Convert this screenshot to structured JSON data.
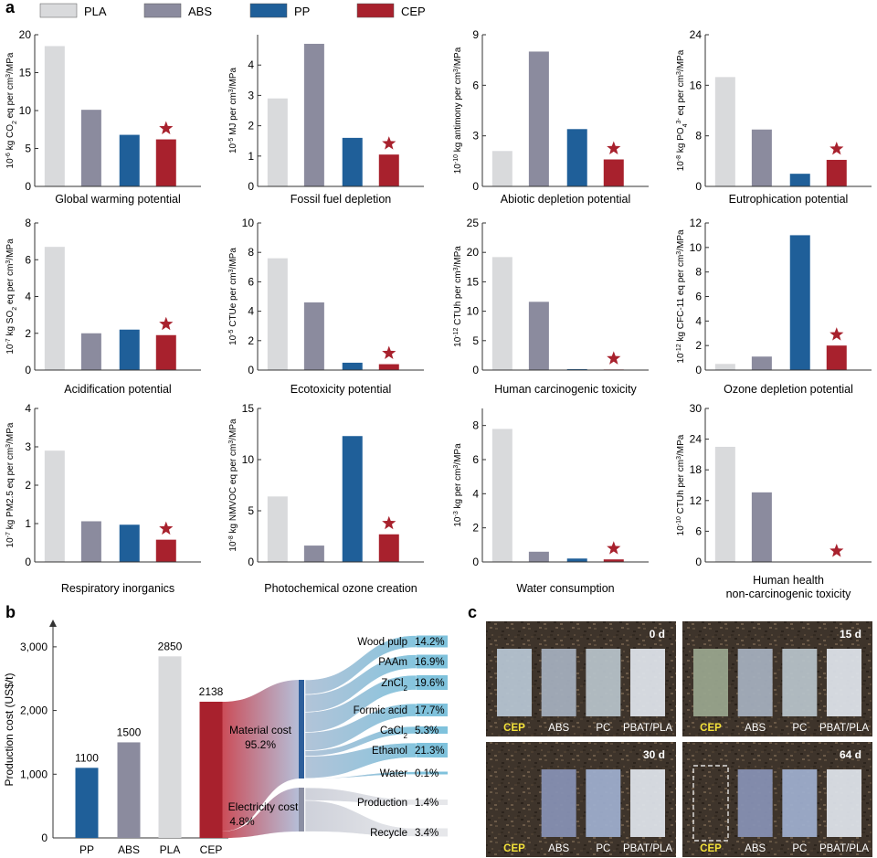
{
  "panel_labels": {
    "a": "a",
    "b": "b",
    "c": "c"
  },
  "legend": {
    "items": [
      {
        "label": "PLA",
        "color": "#d9dadc"
      },
      {
        "label": "ABS",
        "color": "#8b8b9e"
      },
      {
        "label": "PP",
        "color": "#1f5f99"
      },
      {
        "label": "CEP",
        "color": "#a8212d"
      }
    ]
  },
  "colors": {
    "PLA": "#d9dadc",
    "ABS": "#8b8b9e",
    "PP": "#1f5f99",
    "CEP": "#a8212d",
    "star": "#a8212d"
  },
  "chart_data": [
    {
      "type": "bar",
      "title": "",
      "xlabel": "Global warming potential",
      "ylabel_parts": [
        "10",
        "-6",
        " kg CO",
        "2",
        " eq per cm",
        "3",
        "/MPa"
      ],
      "ylim": [
        0,
        20
      ],
      "yticks": [
        0,
        5,
        10,
        15,
        20
      ],
      "categories": [
        "PLA",
        "ABS",
        "PP",
        "CEP"
      ],
      "values": [
        18.5,
        10.1,
        6.8,
        6.2
      ],
      "star_on": "CEP"
    },
    {
      "type": "bar",
      "title": "",
      "xlabel": "Fossil fuel depletion",
      "ylabel_parts": [
        "10",
        "-5",
        " MJ per cm",
        "3",
        "/MPa"
      ],
      "ylim": [
        0,
        5
      ],
      "yticks": [
        0,
        1,
        2,
        3,
        4
      ],
      "categories": [
        "PLA",
        "ABS",
        "PP",
        "CEP"
      ],
      "values": [
        2.9,
        4.7,
        1.6,
        1.05
      ],
      "star_on": "CEP"
    },
    {
      "type": "bar",
      "title": "",
      "xlabel": "Abiotic depletion potential",
      "ylabel_parts": [
        "10",
        "-10",
        " kg antimony per cm",
        "3",
        "/MPa"
      ],
      "ylim": [
        0,
        9
      ],
      "yticks": [
        0,
        3,
        6,
        9
      ],
      "categories": [
        "PLA",
        "ABS",
        "PP",
        "CEP"
      ],
      "values": [
        2.1,
        8.0,
        3.4,
        1.6
      ],
      "star_on": "CEP"
    },
    {
      "type": "bar",
      "title": "",
      "xlabel": "Eutrophication potential",
      "ylabel_parts": [
        "10",
        "-8",
        " kg PO",
        "4",
        "3-",
        " eq per cm",
        "3",
        "/MPa"
      ],
      "ylim": [
        0,
        24
      ],
      "yticks": [
        0,
        8,
        16,
        24
      ],
      "categories": [
        "PLA",
        "ABS",
        "PP",
        "CEP"
      ],
      "values": [
        17.3,
        9.0,
        2.0,
        4.2
      ],
      "star_on": "CEP"
    },
    {
      "type": "bar",
      "title": "",
      "xlabel": "Acidification potential",
      "ylabel_parts": [
        "10",
        "-7",
        " kg SO",
        "2",
        " eq per cm",
        "3",
        "/MPa"
      ],
      "ylim": [
        0,
        8
      ],
      "yticks": [
        0,
        2,
        4,
        6,
        8
      ],
      "categories": [
        "PLA",
        "ABS",
        "PP",
        "CEP"
      ],
      "values": [
        6.7,
        2.0,
        2.2,
        1.9
      ],
      "star_on": "CEP"
    },
    {
      "type": "bar",
      "title": "",
      "xlabel": "Ecotoxicity potential",
      "ylabel_parts": [
        "10",
        "-5",
        " CTUe per cm",
        "3",
        "/MPa"
      ],
      "ylim": [
        0,
        10
      ],
      "yticks": [
        0,
        2,
        4,
        6,
        8,
        10
      ],
      "categories": [
        "PLA",
        "ABS",
        "PP",
        "CEP"
      ],
      "values": [
        7.6,
        4.6,
        0.5,
        0.4
      ],
      "star_on": "CEP"
    },
    {
      "type": "bar",
      "title": "",
      "xlabel": "Human carcinogenic toxicity",
      "ylabel_parts": [
        "10",
        "-12",
        " CTUh per cm",
        "3",
        "/MPa"
      ],
      "ylim": [
        0,
        25
      ],
      "yticks": [
        0,
        5,
        10,
        15,
        20,
        25
      ],
      "categories": [
        "PLA",
        "ABS",
        "PP",
        "CEP"
      ],
      "values": [
        19.2,
        11.6,
        0.15,
        0.1
      ],
      "star_on": "CEP"
    },
    {
      "type": "bar",
      "title": "",
      "xlabel": "Ozone depletion potential",
      "ylabel_parts": [
        "10",
        "-12",
        " kg CFC-11 eq  per cm",
        "3",
        "/MPa"
      ],
      "ylim": [
        0,
        12
      ],
      "yticks": [
        0,
        2,
        4,
        6,
        8,
        10,
        12
      ],
      "categories": [
        "PLA",
        "ABS",
        "PP",
        "CEP"
      ],
      "values": [
        0.5,
        1.1,
        11.0,
        2.0
      ],
      "star_on": "CEP"
    },
    {
      "type": "bar",
      "title": "",
      "xlabel": "Respiratory inorganics",
      "ylabel_parts": [
        "10",
        "-7",
        " kg PM2.5 eq per cm",
        "3",
        "/MPa"
      ],
      "ylim": [
        0,
        4
      ],
      "yticks": [
        0,
        1,
        2,
        3,
        4
      ],
      "categories": [
        "PLA",
        "ABS",
        "PP",
        "CEP"
      ],
      "values": [
        2.9,
        1.06,
        0.97,
        0.58
      ],
      "star_on": "CEP"
    },
    {
      "type": "bar",
      "title": "",
      "xlabel": "Photochemical ozone creation",
      "ylabel_parts": [
        "10",
        "-8",
        " kg NMVOC eq per cm",
        "3",
        "/MPa"
      ],
      "ylim": [
        0,
        15
      ],
      "yticks": [
        0,
        5,
        10,
        15
      ],
      "categories": [
        "PLA",
        "ABS",
        "PP",
        "CEP"
      ],
      "values": [
        6.4,
        1.6,
        12.3,
        2.7
      ],
      "star_on": "CEP"
    },
    {
      "type": "bar",
      "title": "",
      "xlabel": "Water consumption",
      "ylabel_parts": [
        "10",
        "-3",
        " kg per cm",
        "3",
        "/MPa"
      ],
      "ylim": [
        0,
        9
      ],
      "yticks": [
        0,
        2,
        4,
        6,
        8
      ],
      "categories": [
        "PLA",
        "ABS",
        "PP",
        "CEP"
      ],
      "values": [
        7.8,
        0.6,
        0.2,
        0.15
      ],
      "star_on": "CEP"
    },
    {
      "type": "bar",
      "title": "",
      "xlabel": "Human health",
      "xlabel2": "non-carcinogenic toxicity",
      "ylabel_parts": [
        "10",
        "-10",
        " CTUh per cm",
        "3",
        "/MPa"
      ],
      "ylim": [
        0,
        30
      ],
      "yticks": [
        0,
        6,
        12,
        18,
        24,
        30
      ],
      "categories": [
        "PLA",
        "ABS",
        "PP",
        "CEP"
      ],
      "values": [
        22.5,
        13.6,
        0,
        0
      ],
      "star_on": "CEP"
    },
    {
      "type": "bar",
      "panel": "b",
      "title": "",
      "xlabel": "",
      "ylabel": "Production cost (US$/t)",
      "ylim": [
        0,
        3400
      ],
      "yticks": [
        0,
        1000,
        2000,
        3000
      ],
      "ytick_labels": [
        "0",
        "1,000",
        "2,000",
        "3,000"
      ],
      "categories": [
        "PP",
        "ABS",
        "PLA",
        "CEP"
      ],
      "values": [
        1100,
        1500,
        2850,
        2138
      ],
      "value_labels": [
        "1100",
        "1500",
        "2850",
        "2138"
      ],
      "breakdown": {
        "groups": [
          {
            "label": "Material cost",
            "value_label": "95.2%",
            "percent": 95.2
          },
          {
            "label": "Electricity cost",
            "value_label": "4.8%",
            "percent": 4.8
          }
        ],
        "items": [
          {
            "label": "Wood pulp",
            "value_label": "14.2%",
            "percent": 14.2,
            "group": 0
          },
          {
            "label": "PAAm",
            "value_label": "16.9%",
            "percent": 16.9,
            "group": 0
          },
          {
            "label": "ZnCl",
            "label_sub": "2",
            "value_label": "19.6%",
            "percent": 19.6,
            "group": 0
          },
          {
            "label": "Formic acid",
            "value_label": "17.7%",
            "percent": 17.7,
            "group": 0
          },
          {
            "label": "CaCl",
            "label_sub": "2",
            "value_label": "5.3%",
            "percent": 5.3,
            "group": 0
          },
          {
            "label": "Ethanol",
            "value_label": "21.3%",
            "percent": 21.3,
            "group": 0
          },
          {
            "label": "Water",
            "value_label": "0.1%",
            "percent": 0.1,
            "group": 0
          },
          {
            "label": "Production",
            "value_label": "1.4%",
            "percent": 1.4,
            "group": 1
          },
          {
            "label": "Recycle",
            "value_label": "3.4%",
            "percent": 3.4,
            "group": 1
          }
        ]
      }
    }
  ],
  "panel_c": {
    "photos": [
      {
        "day": "0 d",
        "labels": [
          "CEP",
          "ABS",
          "PC",
          "PBAT/PLA"
        ],
        "cep_present": true
      },
      {
        "day": "15 d",
        "labels": [
          "CEP",
          "ABS",
          "PC",
          "PBAT/PLA"
        ],
        "cep_present": true
      },
      {
        "day": "30 d",
        "labels": [
          "CEP",
          "ABS",
          "PC",
          "PBAT/PLA"
        ],
        "cep_present": false
      },
      {
        "day": "64 d",
        "labels": [
          "CEP",
          "ABS",
          "PC",
          "PBAT/PLA"
        ],
        "cep_present": false
      }
    ],
    "cep_label_color": "#f4e23a"
  }
}
